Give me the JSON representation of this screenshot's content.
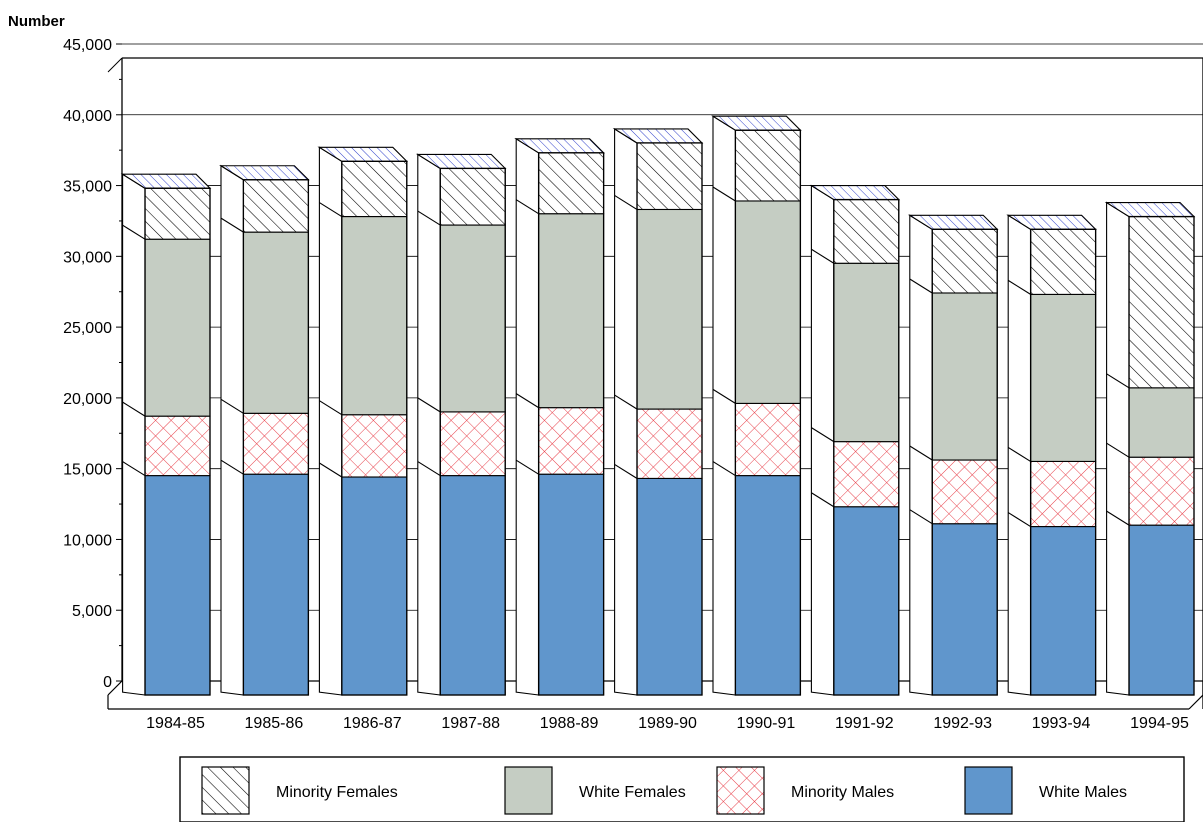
{
  "chart_data": {
    "type": "bar",
    "stacked": true,
    "three_d": true,
    "ylabel": "Number",
    "ylim": [
      0,
      45000
    ],
    "yticks": [
      0,
      5000,
      10000,
      15000,
      20000,
      25000,
      30000,
      35000,
      40000,
      45000
    ],
    "ytick_labels": [
      "0",
      "5,000",
      "10,000",
      "15,000",
      "20,000",
      "25,000",
      "30,000",
      "35,000",
      "40,000",
      "45,000"
    ],
    "grid": true,
    "legend_position": "bottom",
    "categories": [
      "1984-85",
      "1985-86",
      "1986-87",
      "1987-88",
      "1988-89",
      "1989-90",
      "1990-91",
      "1991-92",
      "1992-93",
      "1993-94",
      "1994-95"
    ],
    "series": [
      {
        "name": "White Males",
        "color": "#6096cc",
        "pattern": "solid",
        "values": [
          15500,
          15600,
          15400,
          15500,
          15600,
          15300,
          15500,
          13300,
          12100,
          11900,
          12000
        ]
      },
      {
        "name": "Minority Males",
        "color": "#e8404a",
        "pattern": "crosshatch",
        "values": [
          4200,
          4300,
          4400,
          4500,
          4700,
          4900,
          5100,
          4600,
          4500,
          4600,
          4800
        ]
      },
      {
        "name": "White Females",
        "color": "#c5cdc3",
        "pattern": "solid",
        "values": [
          12500,
          12800,
          14000,
          13200,
          13700,
          14100,
          14300,
          12600,
          11800,
          11800,
          4900
        ]
      },
      {
        "name": "Minority Females",
        "color": "#000000",
        "pattern": "diagonal",
        "values": [
          3600,
          3700,
          3900,
          4000,
          4300,
          4700,
          5000,
          4500,
          4500,
          4600,
          12100
        ]
      }
    ],
    "legend_order": [
      "Minority Females",
      "White Females",
      "Minority Males",
      "White Males"
    ]
  }
}
